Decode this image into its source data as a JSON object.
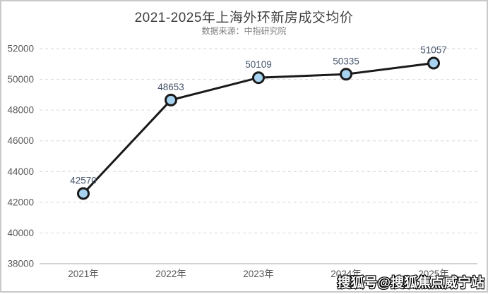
{
  "page": {
    "watermark": "搜狐号@搜狐焦点威宁站"
  },
  "chart_data": {
    "type": "line",
    "title": "2021-2025年上海外环新房成交均价",
    "subtitle": "数据来源：中指研究院",
    "categories": [
      "2021年",
      "2022年",
      "2023年",
      "2024年",
      "2025年"
    ],
    "series": [
      {
        "name": "上海外环新房成交均价",
        "values": [
          42570,
          48653,
          50109,
          50335,
          51057
        ]
      }
    ],
    "data_labels": [
      "42570",
      "48653",
      "50109",
      "50335",
      "51057"
    ],
    "ylim": [
      38000,
      52000
    ],
    "ytick_step": 2000,
    "ytick_labels": [
      "38000",
      "40000",
      "42000",
      "44000",
      "46000",
      "48000",
      "50000",
      "52000"
    ],
    "grid": "horizontal-dashed",
    "legend_position": "none",
    "colors": {
      "line": "#1a1a1a",
      "marker_fill": "#a7d3f0",
      "marker_stroke": "#1a1a1a",
      "data_label": "#44546a",
      "axis_text": "#595959",
      "gridline": "#d6d6d6",
      "axis_line": "#a6a6a6",
      "title": "#404040",
      "subtitle": "#7f7f7f"
    }
  }
}
